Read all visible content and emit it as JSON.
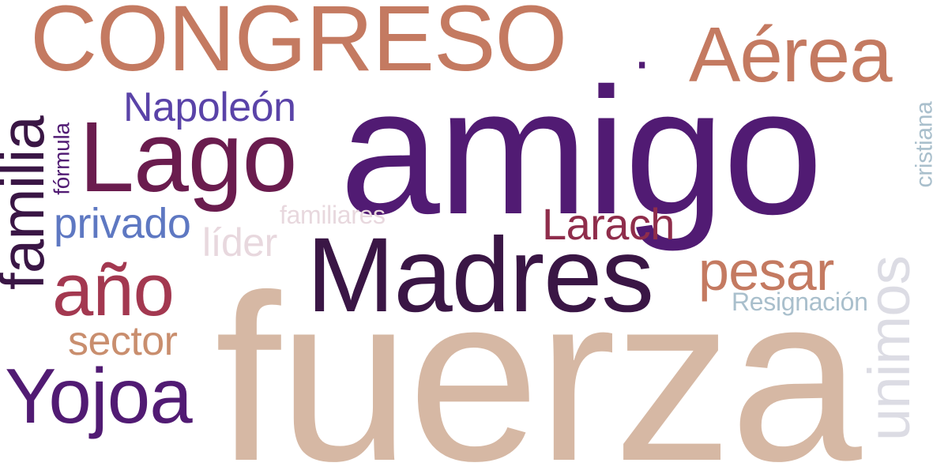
{
  "colors": {
    "background": "#ffffff",
    "tan": "#d6b8a4",
    "purple": "#511b73",
    "salmon": "#c47a61",
    "deep_purple": "#3a1645",
    "plum": "#6a1c4e",
    "violet": "#5a43a8",
    "crimson": "#a33850",
    "steel_blue": "#5e78c2",
    "rose": "#8f2d4b",
    "pale_pink": "#e8d8de",
    "pale_blue": "#a9bfcc",
    "light_gray": "#dcdce4"
  },
  "words": [
    {
      "id": "fuerza",
      "text": "fuerza",
      "color": "#d6b8a4",
      "orientation": "horizontal"
    },
    {
      "id": "amigo",
      "text": "amigo",
      "color": "#511b73",
      "orientation": "horizontal"
    },
    {
      "id": "congreso",
      "text": "CONGRESO",
      "color": "#c47a61",
      "orientation": "horizontal"
    },
    {
      "id": "dot",
      "text": "·",
      "color": "#511b73",
      "orientation": "horizontal"
    },
    {
      "id": "aerea",
      "text": "Aérea",
      "color": "#c47a61",
      "orientation": "horizontal"
    },
    {
      "id": "madres",
      "text": "Madres",
      "color": "#3a1645",
      "orientation": "horizontal"
    },
    {
      "id": "lago",
      "text": "Lago",
      "color": "#6a1c4e",
      "orientation": "horizontal"
    },
    {
      "id": "napoleon",
      "text": "Napoleón",
      "color": "#5a43a8",
      "orientation": "horizontal"
    },
    {
      "id": "ano",
      "text": "año",
      "color": "#a33850",
      "orientation": "horizontal"
    },
    {
      "id": "yojoa",
      "text": "Yojoa",
      "color": "#511b73",
      "orientation": "horizontal"
    },
    {
      "id": "pesar",
      "text": "pesar",
      "color": "#c47a61",
      "orientation": "horizontal"
    },
    {
      "id": "larach",
      "text": "Larach",
      "color": "#8f2d4b",
      "orientation": "horizontal"
    },
    {
      "id": "privado",
      "text": "privado",
      "color": "#5e78c2",
      "orientation": "horizontal"
    },
    {
      "id": "sector",
      "text": "sector",
      "color": "#c98e6e",
      "orientation": "horizontal"
    },
    {
      "id": "lider",
      "text": "líder",
      "color": "#e8d8de",
      "orientation": "horizontal"
    },
    {
      "id": "familiares",
      "text": "familiares",
      "color": "#e8d8de",
      "orientation": "horizontal"
    },
    {
      "id": "resignacion",
      "text": "Resignación",
      "color": "#a9bfcc",
      "orientation": "horizontal"
    },
    {
      "id": "familia",
      "text": "familia",
      "color": "#3a1645",
      "orientation": "vertical"
    },
    {
      "id": "formula",
      "text": "fórmula",
      "color": "#511b73",
      "orientation": "vertical"
    },
    {
      "id": "cristiana",
      "text": "cristiana",
      "color": "#a9bfcc",
      "orientation": "vertical"
    },
    {
      "id": "unimos",
      "text": "unimos",
      "color": "#dcdce4",
      "orientation": "vertical"
    }
  ]
}
